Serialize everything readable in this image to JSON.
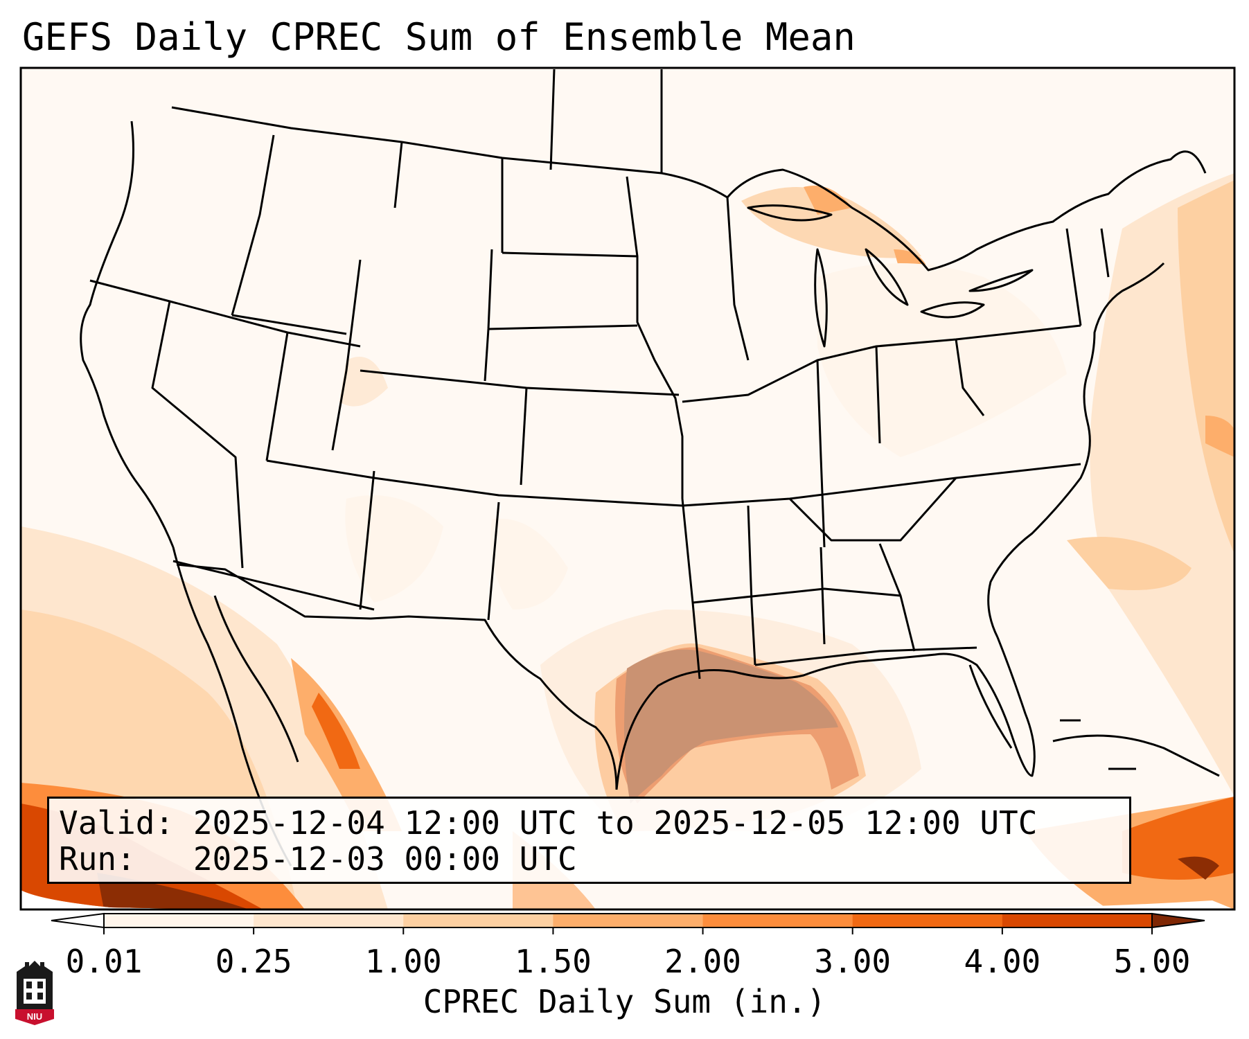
{
  "title": "GEFS Daily CPREC Sum of Ensemble Mean",
  "info": {
    "valid": "Valid: 2025-12-04 12:00 UTC to 2025-12-05 12:00 UTC",
    "run": "Run:   2025-12-03 00:00 UTC"
  },
  "colorbar": {
    "label": "CPREC Daily Sum (in.)",
    "ticks": [
      "0.01",
      "0.25",
      "1.00",
      "1.50",
      "2.00",
      "3.00",
      "4.00",
      "5.00"
    ],
    "colors": [
      "#fff5eb",
      "#fee6ce",
      "#fdd0a2",
      "#fdae6b",
      "#fd8d3c",
      "#f16913",
      "#d94801",
      "#8c2d04"
    ],
    "under_color": "#ffffff",
    "over_color": "#7f2704"
  },
  "logo": {
    "text": "NIU",
    "color": "#c8102e"
  },
  "map": {
    "land_border_color": "#000000",
    "frame_color": "#000000"
  }
}
